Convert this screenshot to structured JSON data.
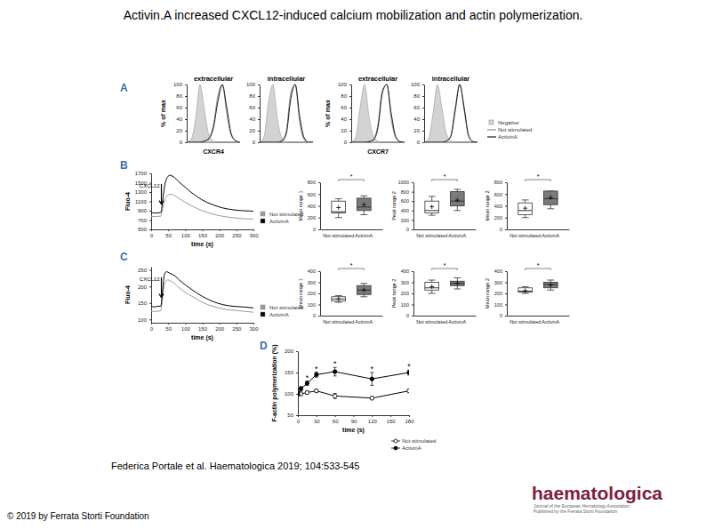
{
  "title": "Activin.A increased CXCL12-induced calcium mobilization and actin polymerization.",
  "citation": "Federica Portale et al. Haematologica 2019; 104:533-545",
  "copyright": "© 2019 by Ferrata Storti Foundation",
  "logo": {
    "name": "haematologica",
    "tagline": [
      "Journal of the European Hematology Association",
      "Published by the Ferrata Storti Foundation"
    ]
  },
  "chart_data": [
    {
      "type": "line",
      "panel_label": "A",
      "title": "extracellular",
      "x_label": "CXCR4",
      "y_label": "% of max",
      "x": [
        0,
        1,
        2,
        3,
        4,
        5,
        6,
        7,
        8,
        9,
        10,
        11,
        12
      ],
      "xlim": [
        0,
        12
      ],
      "ylim": [
        0,
        100
      ],
      "yticks": [
        0,
        20,
        40,
        60,
        80,
        100
      ],
      "tick_labels": "y",
      "series": [
        {
          "name": "Negative",
          "type": "area",
          "color": "#d3d3d3",
          "values": [
            0,
            5,
            40,
            100,
            55,
            12,
            2,
            0,
            0,
            0,
            0,
            0,
            0
          ]
        },
        {
          "name": "Not stimulated",
          "color": "#8c8c8c",
          "values": [
            0,
            0,
            0,
            0,
            2,
            8,
            30,
            80,
            100,
            50,
            12,
            2,
            0
          ]
        },
        {
          "name": "ActivinA",
          "color": "#1a1a1a",
          "values": [
            0,
            0,
            0,
            0,
            2,
            6,
            25,
            70,
            100,
            60,
            15,
            3,
            0
          ]
        }
      ]
    },
    {
      "type": "line",
      "title": "intracellular",
      "x": [
        0,
        1,
        2,
        3,
        4,
        5,
        6,
        7,
        8,
        9,
        10,
        11,
        12
      ],
      "xlim": [
        0,
        12
      ],
      "ylim": [
        0,
        100
      ],
      "yticks": [
        0,
        20,
        40,
        60,
        80,
        100
      ],
      "tick_labels": "y",
      "series": [
        {
          "name": "Negative",
          "type": "area",
          "color": "#d3d3d3",
          "values": [
            0,
            10,
            70,
            100,
            40,
            8,
            1,
            0,
            0,
            0,
            0,
            0,
            0
          ]
        },
        {
          "name": "Not stimulated",
          "color": "#8c8c8c",
          "values": [
            0,
            0,
            0,
            0,
            0,
            3,
            20,
            85,
            100,
            35,
            5,
            0,
            0
          ]
        },
        {
          "name": "ActivinA",
          "color": "#1a1a1a",
          "values": [
            0,
            0,
            0,
            0,
            0,
            2,
            15,
            75,
            100,
            45,
            8,
            0,
            0
          ]
        }
      ]
    },
    {
      "type": "line",
      "title": "extracellular",
      "x_label": "CXCR7",
      "y_label": "% of max",
      "x": [
        0,
        1,
        2,
        3,
        4,
        5,
        6,
        7,
        8,
        9,
        10,
        11,
        12
      ],
      "xlim": [
        0,
        12
      ],
      "ylim": [
        0,
        100
      ],
      "yticks": [
        0,
        20,
        40,
        60,
        80,
        100
      ],
      "tick_labels": "y",
      "series": [
        {
          "name": "Negative",
          "type": "area",
          "color": "#d3d3d3",
          "values": [
            0,
            8,
            60,
            100,
            45,
            10,
            2,
            0,
            0,
            0,
            0,
            0,
            0
          ]
        },
        {
          "name": "Not stimulated",
          "color": "#8c8c8c",
          "values": [
            0,
            0,
            0,
            0,
            1,
            5,
            30,
            90,
            100,
            40,
            8,
            1,
            0
          ]
        },
        {
          "name": "ActivinA",
          "color": "#1a1a1a",
          "values": [
            0,
            0,
            0,
            0,
            1,
            4,
            25,
            85,
            100,
            50,
            10,
            1,
            0
          ]
        }
      ]
    },
    {
      "type": "line",
      "title": "intracellular",
      "legend": "right",
      "x": [
        0,
        1,
        2,
        3,
        4,
        5,
        6,
        7,
        8,
        9,
        10,
        11,
        12
      ],
      "xlim": [
        0,
        12
      ],
      "ylim": [
        0,
        100
      ],
      "yticks": [
        0,
        20,
        40,
        60,
        80,
        100
      ],
      "tick_labels": "y",
      "series": [
        {
          "name": "Negative",
          "type": "area",
          "color": "#d3d3d3",
          "values": [
            0,
            6,
            50,
            100,
            60,
            15,
            3,
            0,
            0,
            0,
            0,
            0,
            0
          ]
        },
        {
          "name": "Not stimulated",
          "color": "#8c8c8c",
          "values": [
            0,
            0,
            0,
            0,
            0,
            2,
            12,
            60,
            100,
            55,
            10,
            1,
            0
          ]
        },
        {
          "name": "ActivinA",
          "color": "#1a1a1a",
          "values": [
            0,
            0,
            0,
            0,
            0,
            2,
            10,
            55,
            100,
            60,
            12,
            1,
            0
          ]
        }
      ]
    },
    {
      "type": "line",
      "panel_label": "B",
      "x_label": "time (s)",
      "y_label": "Fluo-4",
      "legend": "lower right",
      "x": [
        0,
        10,
        20,
        28,
        32,
        36,
        40,
        45,
        50,
        55,
        60,
        70,
        80,
        100,
        120,
        150,
        180,
        210,
        240,
        270,
        300
      ],
      "xlim": [
        0,
        300
      ],
      "xticks": [
        0,
        50,
        100,
        150,
        200,
        250,
        300
      ],
      "ylim": [
        500,
        1700
      ],
      "yticks": [
        500,
        700,
        900,
        1100,
        1300,
        1500,
        1700
      ],
      "annotations": [
        {
          "text": "CXCL12",
          "x": 30
        }
      ],
      "series": [
        {
          "name": "Not stimulated",
          "color": "#9a9a9a",
          "values": [
            780,
            775,
            780,
            780,
            880,
            1020,
            1130,
            1200,
            1240,
            1255,
            1250,
            1220,
            1170,
            1080,
            1000,
            900,
            830,
            780,
            750,
            730,
            720
          ]
        },
        {
          "name": "ActivinA",
          "color": "#000000",
          "values": [
            860,
            850,
            855,
            860,
            1000,
            1250,
            1450,
            1580,
            1640,
            1660,
            1650,
            1600,
            1530,
            1400,
            1280,
            1130,
            1030,
            960,
            920,
            900,
            890
          ]
        }
      ]
    },
    {
      "type": "box",
      "y_label": "Mean range 1",
      "categories": [
        "Not stimulated",
        "ActivinA"
      ],
      "colors": [
        "#ffffff",
        "#7a7a7a"
      ],
      "ylim": [
        0,
        800
      ],
      "yticks": [
        0,
        200,
        400,
        600,
        800
      ],
      "min": [
        200,
        250
      ],
      "q1": [
        280,
        320
      ],
      "median": [
        300,
        380
      ],
      "q3": [
        480,
        530
      ],
      "max": [
        520,
        570
      ],
      "mean": [
        370,
        420
      ],
      "annotations": [
        {
          "text": "*"
        }
      ]
    },
    {
      "type": "box",
      "y_label": "Peak range 2",
      "categories": [
        "Not stimulated",
        "ActivinA"
      ],
      "colors": [
        "#ffffff",
        "#7a7a7a"
      ],
      "ylim": [
        0,
        1000
      ],
      "yticks": [
        0,
        200,
        400,
        600,
        800,
        1000
      ],
      "min": [
        300,
        400
      ],
      "q1": [
        350,
        500
      ],
      "median": [
        400,
        600
      ],
      "q3": [
        600,
        800
      ],
      "max": [
        700,
        850
      ],
      "mean": [
        480,
        620
      ],
      "annotations": [
        {
          "text": "*"
        }
      ]
    },
    {
      "type": "box",
      "y_label": "Mean range 2",
      "categories": [
        "Not stimulated",
        "ActivinA"
      ],
      "colors": [
        "#ffffff",
        "#7a7a7a"
      ],
      "ylim": [
        0,
        800
      ],
      "yticks": [
        0,
        200,
        400,
        600,
        800
      ],
      "min": [
        200,
        350
      ],
      "q1": [
        250,
        420
      ],
      "median": [
        320,
        520
      ],
      "q3": [
        450,
        650
      ],
      "max": [
        500,
        650
      ],
      "mean": [
        360,
        540
      ],
      "annotations": [
        {
          "text": "*"
        }
      ]
    },
    {
      "type": "line",
      "panel_label": "C",
      "x_label": "time (s)",
      "y_label": "Fluo-4",
      "legend": "lower right",
      "x": [
        0,
        10,
        20,
        28,
        32,
        36,
        40,
        45,
        50,
        55,
        60,
        70,
        80,
        100,
        120,
        150,
        180,
        210,
        240,
        270,
        300
      ],
      "xlim": [
        0,
        300
      ],
      "xticks": [
        0,
        50,
        100,
        150,
        200,
        250,
        300
      ],
      "ylim": [
        90,
        260
      ],
      "yticks": [
        100,
        150,
        200,
        250
      ],
      "annotations": [
        {
          "text": "CXCL12",
          "x": 30
        }
      ],
      "series": [
        {
          "name": "Not stimulated",
          "color": "#9a9a9a",
          "values": [
            125,
            124,
            125,
            126,
            150,
            190,
            210,
            218,
            220,
            218,
            215,
            208,
            198,
            182,
            170,
            152,
            140,
            132,
            128,
            125,
            122
          ]
        },
        {
          "name": "ActivinA",
          "color": "#000000",
          "values": [
            140,
            138,
            140,
            140,
            170,
            215,
            240,
            245,
            243,
            240,
            238,
            232,
            222,
            205,
            190,
            170,
            155,
            145,
            140,
            138,
            135
          ]
        }
      ]
    },
    {
      "type": "box",
      "y_label": "Mean range 1",
      "categories": [
        "Not stimulated",
        "ActivinA"
      ],
      "colors": [
        "#ffffff",
        "#7a7a7a"
      ],
      "ylim": [
        0,
        400
      ],
      "yticks": [
        0,
        100,
        200,
        300,
        400
      ],
      "min": [
        120,
        170
      ],
      "q1": [
        130,
        190
      ],
      "median": [
        150,
        230
      ],
      "q3": [
        170,
        270
      ],
      "max": [
        180,
        290
      ],
      "mean": [
        150,
        230
      ],
      "annotations": [
        {
          "text": "*"
        }
      ]
    },
    {
      "type": "box",
      "y_label": "Peak range 2",
      "categories": [
        "Not stimulated",
        "ActivinA"
      ],
      "colors": [
        "#ffffff",
        "#7a7a7a"
      ],
      "ylim": [
        0,
        400
      ],
      "yticks": [
        0,
        100,
        200,
        300,
        400
      ],
      "min": [
        200,
        240
      ],
      "q1": [
        230,
        270
      ],
      "median": [
        250,
        290
      ],
      "q3": [
        300,
        310
      ],
      "max": [
        320,
        340
      ],
      "mean": [
        260,
        290
      ],
      "annotations": [
        {
          "text": "*"
        }
      ]
    },
    {
      "type": "box",
      "y_label": "Mean range 2",
      "categories": [
        "Not stimulated",
        "ActivinA"
      ],
      "colors": [
        "#ffffff",
        "#7a7a7a"
      ],
      "ylim": [
        0,
        400
      ],
      "yticks": [
        0,
        100,
        200,
        300,
        400
      ],
      "min": [
        200,
        230
      ],
      "q1": [
        210,
        250
      ],
      "median": [
        220,
        280
      ],
      "q3": [
        250,
        300
      ],
      "max": [
        260,
        320
      ],
      "mean": [
        225,
        275
      ],
      "annotations": [
        {
          "text": "*"
        }
      ]
    },
    {
      "type": "line",
      "panel_label": "D",
      "x_label": "time (s)",
      "y_label": "F-actin polymerization (%)",
      "legend": "lower right",
      "x": [
        0,
        5,
        15,
        30,
        60,
        120,
        180
      ],
      "xlim": [
        0,
        180
      ],
      "xticks": [
        0,
        30,
        60,
        90,
        120,
        150,
        180
      ],
      "ylim": [
        50,
        200
      ],
      "yticks": [
        50,
        100,
        150,
        200
      ],
      "annotations": [
        {
          "text": "*",
          "x": 15
        },
        {
          "text": "*",
          "x": 30
        },
        {
          "text": "*",
          "x": 60
        },
        {
          "text": "*",
          "x": 120
        },
        {
          "text": "*",
          "x": 180
        }
      ],
      "series": [
        {
          "name": "Not stimulated",
          "color": "#000000",
          "marker": "open",
          "values": [
            100,
            100,
            103,
            107,
            95,
            90,
            107
          ],
          "errors": [
            4,
            4,
            4,
            4,
            6,
            4,
            4
          ]
        },
        {
          "name": "ActivinA",
          "color": "#000000",
          "marker": "filled",
          "values": [
            100,
            112,
            125,
            145,
            152,
            135,
            150
          ],
          "errors": [
            4,
            5,
            5,
            6,
            10,
            15,
            6
          ]
        }
      ]
    }
  ]
}
